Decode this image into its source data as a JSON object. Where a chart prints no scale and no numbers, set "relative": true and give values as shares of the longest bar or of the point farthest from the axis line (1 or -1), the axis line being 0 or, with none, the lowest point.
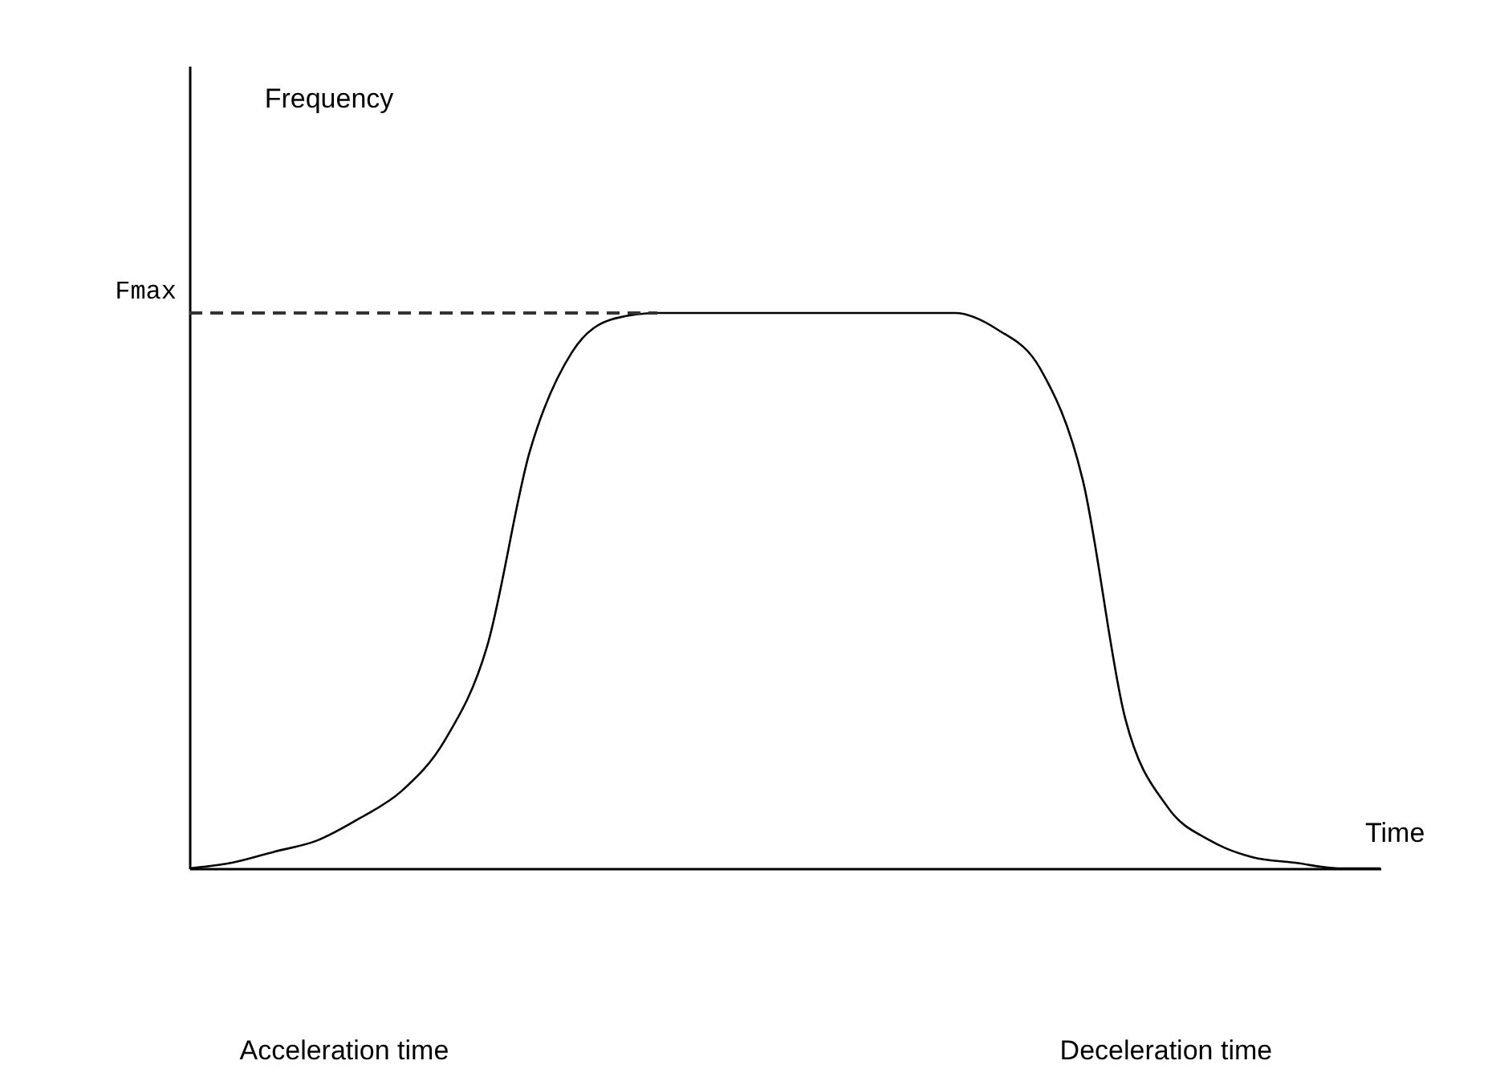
{
  "chart_data": {
    "type": "line",
    "relative": true,
    "xlabel": "Time",
    "categories": [
      null,
      null,
      null,
      null,
      null,
      null,
      null,
      null,
      null,
      null,
      null,
      null,
      null,
      null,
      null,
      null,
      null,
      null,
      null,
      null,
      null,
      null,
      null,
      null,
      null,
      null,
      null,
      null,
      null
    ],
    "series": [
      {
        "color": "#000000",
        "values": [
          0,
          0.01,
          0.03,
          0.05,
          0.09,
          0.14,
          0.23,
          0.4,
          0.75,
          0.93,
          0.99,
          1,
          1,
          1,
          1,
          1,
          1,
          1,
          1,
          0.97,
          0.9,
          0.7,
          0.27,
          0.11,
          0.05,
          0.02,
          0.01,
          0,
          0
        ]
      }
    ],
    "ref_lines": [
      {
        "axis": "y",
        "value": 1,
        "label": "Fmax",
        "line_style": "dashed",
        "color": "#333333"
      }
    ],
    "annotations": [
      "Frequency",
      "Acceleration time",
      "Deceleration time"
    ],
    "grid": false,
    "marker": "none",
    "line_style": "solid",
    "tick_labels": false
  }
}
